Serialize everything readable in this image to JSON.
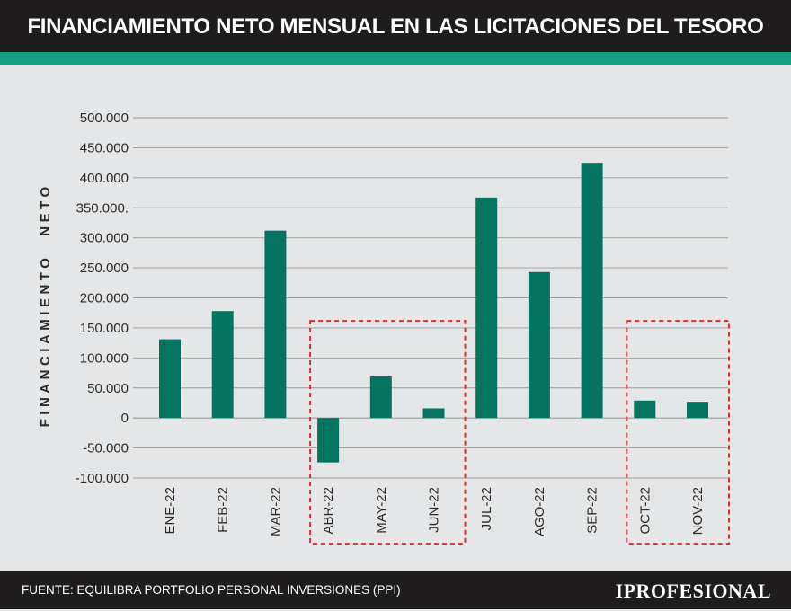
{
  "header": {
    "title": "FINANCIAMIENTO NETO MENSUAL EN LAS LICITACIONES DEL TESORO"
  },
  "footer": {
    "source": "FUENTE: EQUILIBRA PORTFOLIO PERSONAL INVERSIONES (PPI)",
    "logo": "IPROFESIONAL"
  },
  "colors": {
    "bar": "#047360",
    "accent": "#13a086",
    "header_bg": "#1e1c1c",
    "highlight_box": "#e32b2b",
    "background": "#e5e6e7"
  },
  "chart_data": {
    "type": "bar",
    "title": "FINANCIAMIENTO NETO MENSUAL EN LAS LICITACIONES DEL TESORO",
    "ylabel_words": [
      "Financiamiento",
      "neto"
    ],
    "categories": [
      "ENE-22",
      "FEB-22",
      "MAR-22",
      "ABR-22",
      "MAY-22",
      "JUN-22",
      "JUL-22",
      "AGO-22",
      "SEP-22",
      "OCT-22",
      "NOV-22"
    ],
    "values": [
      131000,
      178000,
      312000,
      -74000,
      69000,
      16000,
      367000,
      243000,
      425000,
      29000,
      27000
    ],
    "ylim": [
      -100000,
      500000
    ],
    "yticks": [
      500000,
      450000,
      400000,
      350000,
      300000,
      250000,
      200000,
      150000,
      100000,
      50000,
      0,
      -50000,
      -100000
    ],
    "ytick_labels": [
      "500.000",
      "450.000",
      "400.000",
      "350.000.",
      "300.000",
      "250.000",
      "200.000",
      "150.000",
      "100.000",
      "50.000",
      "0",
      "-50.000",
      "-100.000"
    ],
    "grid": true,
    "highlight_groups": [
      [
        "ABR-22",
        "MAY-22",
        "JUN-22"
      ],
      [
        "OCT-22",
        "NOV-22"
      ]
    ]
  }
}
